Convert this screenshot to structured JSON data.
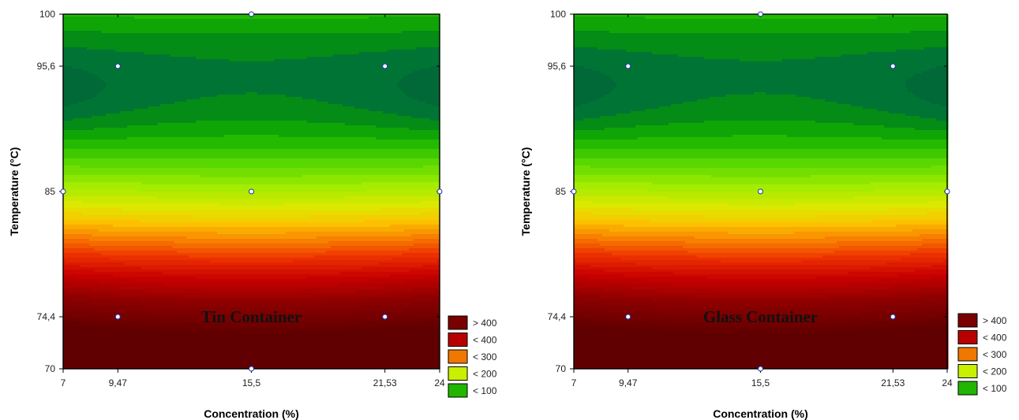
{
  "chart_data": [
    {
      "type": "contour",
      "label": "Tin Container",
      "xlabel": "Concentration (%)",
      "ylabel": "Temperature (°C)",
      "xlim": [
        7,
        24
      ],
      "ylim": [
        70,
        100
      ],
      "x_ticks": [
        "7",
        "9,47",
        "15,5",
        "21,53",
        "24"
      ],
      "x_tick_values": [
        7,
        9.47,
        15.5,
        21.53,
        24
      ],
      "y_ticks": [
        "70",
        "74,4",
        "85",
        "95,6",
        "100"
      ],
      "y_tick_values": [
        70,
        74.4,
        85,
        95.6,
        100
      ],
      "design_points": [
        {
          "x": 9.47,
          "y": 95.6
        },
        {
          "x": 21.53,
          "y": 95.6
        },
        {
          "x": 15.5,
          "y": 85
        },
        {
          "x": 9.47,
          "y": 74.4
        },
        {
          "x": 21.53,
          "y": 74.4
        },
        {
          "x": 15.5,
          "y": 100
        },
        {
          "x": 15.5,
          "y": 70
        },
        {
          "x": 7,
          "y": 85
        },
        {
          "x": 24,
          "y": 85
        }
      ],
      "legend": [
        {
          "label": "> 400",
          "color": "#7a0000"
        },
        {
          "label": "< 400",
          "color": "#b80000"
        },
        {
          "label": "< 300",
          "color": "#f07800"
        },
        {
          "label": "< 200",
          "color": "#c8f000"
        },
        {
          "label": "< 100",
          "color": "#22b600"
        }
      ]
    },
    {
      "type": "contour",
      "label": "Glass Container",
      "xlabel": "Concentration (%)",
      "ylabel": "Temperature (°C)",
      "xlim": [
        7,
        24
      ],
      "ylim": [
        70,
        100
      ],
      "x_ticks": [
        "7",
        "9,47",
        "15,5",
        "21,53",
        "24"
      ],
      "x_tick_values": [
        7,
        9.47,
        15.5,
        21.53,
        24
      ],
      "y_ticks": [
        "70",
        "74,4",
        "85",
        "95,6",
        "100"
      ],
      "y_tick_values": [
        70,
        74.4,
        85,
        95.6,
        100
      ],
      "design_points": [
        {
          "x": 9.47,
          "y": 95.6
        },
        {
          "x": 21.53,
          "y": 95.6
        },
        {
          "x": 15.5,
          "y": 85
        },
        {
          "x": 9.47,
          "y": 74.4
        },
        {
          "x": 21.53,
          "y": 74.4
        },
        {
          "x": 15.5,
          "y": 100
        },
        {
          "x": 15.5,
          "y": 70
        },
        {
          "x": 7,
          "y": 85
        },
        {
          "x": 24,
          "y": 85
        }
      ],
      "legend": [
        {
          "label": "> 400",
          "color": "#7a0000"
        },
        {
          "label": "< 400",
          "color": "#b80000"
        },
        {
          "label": "< 300",
          "color": "#f07800"
        },
        {
          "label": "< 200",
          "color": "#c8f000"
        },
        {
          "label": "< 100",
          "color": "#22b600"
        }
      ]
    }
  ]
}
